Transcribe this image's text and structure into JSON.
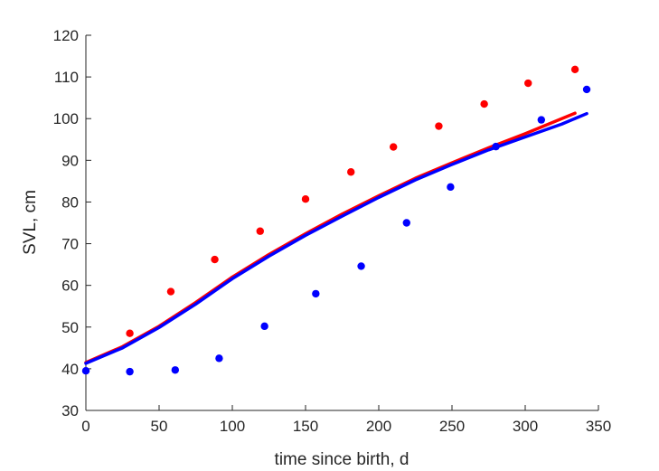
{
  "chart_data": {
    "type": "scatter",
    "title": "",
    "xlabel": "time since birth, d",
    "ylabel": "SVL, cm",
    "xlim": [
      0,
      350
    ],
    "ylim": [
      30,
      120
    ],
    "xticks": [
      0,
      50,
      100,
      150,
      200,
      250,
      300,
      350
    ],
    "yticks": [
      30,
      40,
      50,
      60,
      70,
      80,
      90,
      100,
      110,
      120
    ],
    "grid": false,
    "legend": null,
    "series": [
      {
        "kind": "points",
        "color": "#ff0000",
        "x": [
          30,
          58,
          88,
          119,
          150,
          181,
          210,
          241,
          272,
          302,
          334
        ],
        "y": [
          48.5,
          58.5,
          66.2,
          73.0,
          80.7,
          87.2,
          93.2,
          98.2,
          103.5,
          108.5,
          111.8
        ]
      },
      {
        "kind": "points",
        "color": "#0000ff",
        "x": [
          0,
          30,
          61,
          91,
          122,
          157,
          188,
          219,
          249,
          280,
          311,
          342
        ],
        "y": [
          39.5,
          39.3,
          39.7,
          42.5,
          50.2,
          58.0,
          64.6,
          75.0,
          83.6,
          93.3,
          99.7,
          107.0
        ]
      },
      {
        "kind": "line",
        "color": "#ff0000",
        "x": [
          0,
          25,
          50,
          75,
          100,
          125,
          150,
          175,
          200,
          225,
          250,
          275,
          300,
          334
        ],
        "y": [
          41.5,
          45.3,
          50.2,
          55.9,
          62.0,
          67.4,
          72.4,
          77.1,
          81.5,
          85.7,
          89.4,
          93.0,
          96.4,
          101.3
        ]
      },
      {
        "kind": "line",
        "color": "#0000ff",
        "x": [
          0,
          25,
          50,
          75,
          100,
          125,
          150,
          175,
          200,
          225,
          250,
          275,
          300,
          325,
          342
        ],
        "y": [
          41.3,
          45.0,
          49.9,
          55.5,
          61.6,
          67.0,
          72.0,
          76.6,
          81.1,
          85.3,
          89.0,
          92.5,
          95.6,
          98.7,
          101.2
        ]
      }
    ]
  }
}
